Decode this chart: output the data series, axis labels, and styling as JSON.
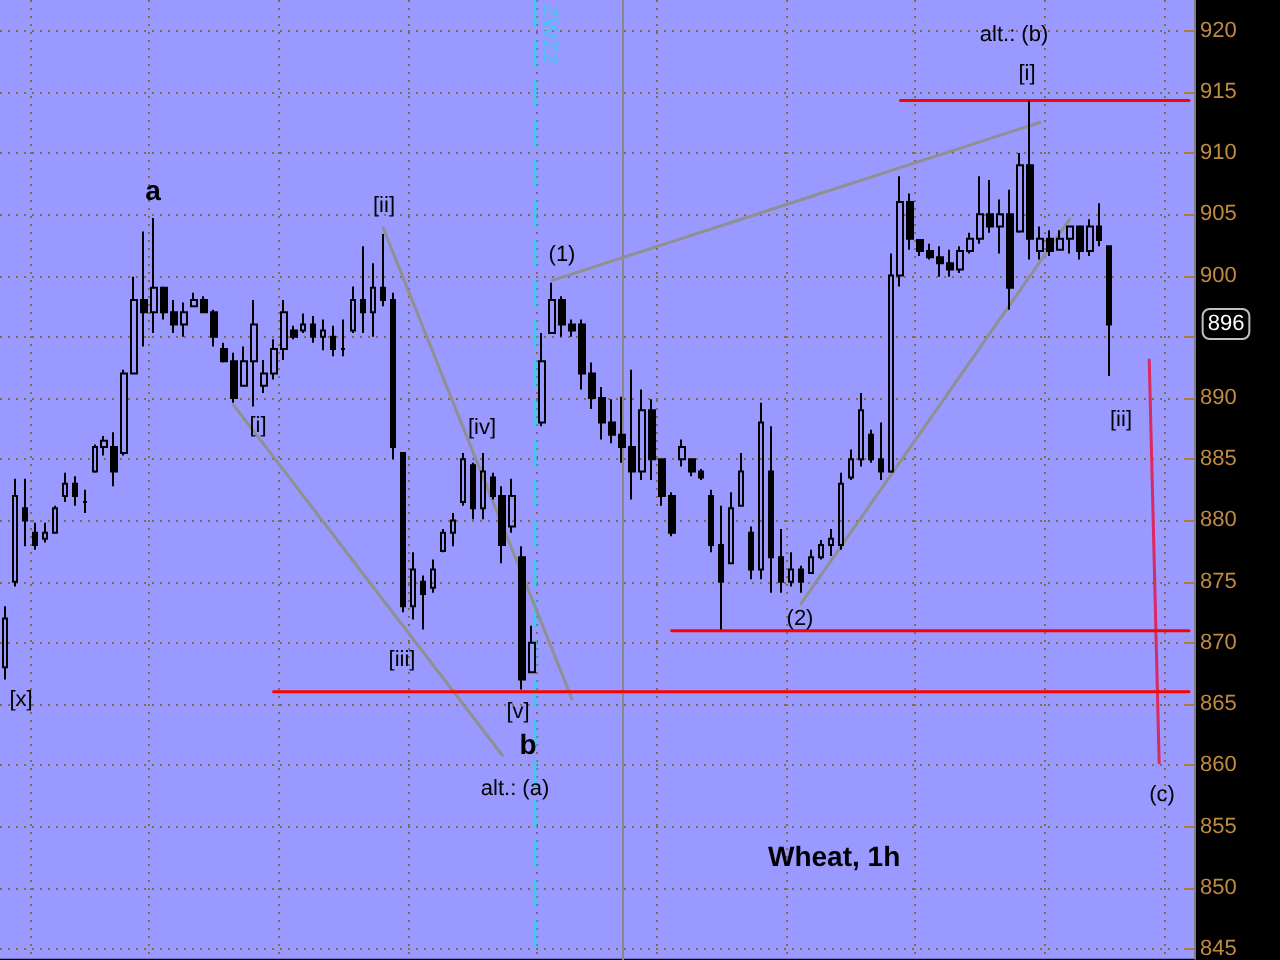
{
  "chart_data": {
    "type": "candlestick",
    "title": "Wheat, 1h",
    "color": "#000000",
    "categories": [
      null,
      null,
      null,
      null,
      null,
      null,
      null,
      null,
      null,
      null,
      null,
      null,
      null,
      null,
      null,
      null,
      null,
      null,
      null,
      null,
      null,
      null,
      null,
      null,
      null,
      null,
      null,
      null,
      null,
      null,
      null,
      null,
      null,
      null,
      null,
      null,
      null,
      null,
      null,
      null,
      null,
      null,
      null,
      null,
      null,
      null,
      null,
      null,
      null,
      null,
      null,
      null,
      null,
      null,
      null,
      null,
      null,
      null,
      null,
      null,
      null,
      null,
      null,
      null,
      null,
      null,
      null,
      null,
      null,
      null,
      null,
      null,
      null,
      null,
      null,
      null,
      null,
      null,
      null,
      null,
      null,
      null,
      null,
      null,
      null,
      null,
      null,
      null,
      null,
      null,
      null,
      null,
      null,
      null,
      null,
      null,
      null,
      null,
      null,
      null,
      null,
      null,
      null,
      null,
      null,
      null,
      null,
      null,
      null,
      null,
      null,
      null,
      null,
      null,
      null,
      null,
      null,
      null,
      null,
      null
    ],
    "ohlc": [
      [
        868,
        873,
        867,
        872
      ],
      [
        875,
        883.4,
        874.6,
        882
      ],
      [
        881,
        883.4,
        877.9,
        880
      ],
      [
        879,
        879.8,
        877.6,
        878
      ],
      [
        878.5,
        879.8,
        878.2,
        879
      ],
      [
        879,
        881.2,
        879,
        881
      ],
      [
        882,
        883.9,
        881.5,
        883
      ],
      [
        883,
        883.6,
        881.2,
        882
      ],
      [
        881.5,
        882.5,
        880.6,
        881.5
      ],
      [
        884,
        886.2,
        883.9,
        886
      ],
      [
        886,
        886.9,
        885.3,
        886.5
      ],
      [
        886,
        887.2,
        882.8,
        884
      ],
      [
        885.5,
        892.3,
        885.3,
        892
      ],
      [
        892,
        899.9,
        892,
        898
      ],
      [
        898,
        903.6,
        894.2,
        897
      ],
      [
        897,
        904.7,
        895.3,
        899
      ],
      [
        899,
        899.1,
        896.4,
        897
      ],
      [
        897,
        898,
        895.3,
        896
      ],
      [
        896,
        897.8,
        895,
        897
      ],
      [
        897.5,
        898.6,
        897.5,
        898
      ],
      [
        898,
        898.3,
        897,
        897
      ],
      [
        897,
        897.2,
        894.2,
        895
      ],
      [
        894,
        894.5,
        892.9,
        893
      ],
      [
        893,
        893.7,
        889.6,
        890
      ],
      [
        891,
        894.2,
        891,
        893
      ],
      [
        893,
        898,
        889.3,
        896
      ],
      [
        891,
        893.1,
        890.4,
        892
      ],
      [
        892,
        894.8,
        891.5,
        894
      ],
      [
        894,
        898,
        893.1,
        897
      ],
      [
        895.5,
        895.9,
        894.8,
        895
      ],
      [
        895.5,
        896.9,
        895.3,
        896
      ],
      [
        896,
        896.7,
        894.5,
        895
      ],
      [
        895,
        896.4,
        893.9,
        895.5
      ],
      [
        895,
        895.9,
        893.4,
        894
      ],
      [
        894,
        896.4,
        893.4,
        894
      ],
      [
        895.5,
        899.1,
        895.3,
        898
      ],
      [
        898,
        902.4,
        895.3,
        897
      ],
      [
        897,
        901,
        895,
        899
      ],
      [
        899,
        903.4,
        897.5,
        898
      ],
      [
        898,
        898.6,
        885,
        886
      ],
      [
        885.5,
        885.5,
        872.5,
        873
      ],
      [
        873,
        877.4,
        871.9,
        876
      ],
      [
        875,
        875.5,
        871.1,
        874
      ],
      [
        874.5,
        876.8,
        874.1,
        876
      ],
      [
        877.5,
        879.3,
        877.4,
        879
      ],
      [
        879,
        880.6,
        877.9,
        880
      ],
      [
        881.5,
        885.5,
        881.2,
        885
      ],
      [
        884.5,
        884.7,
        880.1,
        881
      ],
      [
        881,
        885.5,
        880.1,
        884
      ],
      [
        883.5,
        883.9,
        881.7,
        882
      ],
      [
        882,
        882.8,
        876.5,
        878
      ],
      [
        879.5,
        883.4,
        879,
        882
      ],
      [
        877,
        877.9,
        866.2,
        867
      ],
      [
        867.6,
        871.4,
        867.6,
        870
      ],
      [
        888,
        895.3,
        887.7,
        893
      ],
      [
        895.3,
        899.4,
        895.3,
        898
      ],
      [
        898,
        898.3,
        895,
        896
      ],
      [
        896,
        896.4,
        895,
        895.5
      ],
      [
        896,
        896.4,
        890.7,
        892
      ],
      [
        892,
        892.9,
        889.1,
        890
      ],
      [
        890,
        890.9,
        886.6,
        888
      ],
      [
        888,
        889.9,
        886.3,
        887
      ],
      [
        887,
        890.1,
        884.7,
        886
      ],
      [
        886,
        892.3,
        881.7,
        884
      ],
      [
        884,
        890.7,
        883.3,
        889
      ],
      [
        889,
        889.9,
        883.3,
        885
      ],
      [
        885,
        885,
        881.2,
        882
      ],
      [
        882,
        882.3,
        878.7,
        879
      ],
      [
        885,
        886.6,
        884.4,
        886
      ],
      [
        885,
        885,
        883.6,
        884
      ],
      [
        884,
        884.2,
        883.3,
        883.5
      ],
      [
        882,
        882.5,
        877.4,
        878
      ],
      [
        878,
        881.2,
        871.1,
        875
      ],
      [
        876.5,
        882.3,
        876.5,
        881
      ],
      [
        881.2,
        885.5,
        881.2,
        884
      ],
      [
        879,
        879.5,
        875.2,
        876
      ],
      [
        876,
        889.6,
        875.2,
        888
      ],
      [
        884,
        887.7,
        874.1,
        877
      ],
      [
        877,
        879.3,
        874.1,
        875
      ],
      [
        875,
        877.4,
        874.6,
        876
      ],
      [
        876,
        876.3,
        874.1,
        875
      ],
      [
        875.7,
        877.6,
        875.7,
        877
      ],
      [
        877,
        878.4,
        876.8,
        878
      ],
      [
        878,
        879.3,
        877.1,
        878.5
      ],
      [
        878,
        883.9,
        877.6,
        883
      ],
      [
        883.5,
        885.8,
        883.3,
        885
      ],
      [
        885,
        890.4,
        884.4,
        889
      ],
      [
        887,
        887.4,
        884.7,
        885
      ],
      [
        885,
        888,
        883.3,
        884
      ],
      [
        884,
        901.8,
        883.9,
        900
      ],
      [
        900,
        908.1,
        899.1,
        906
      ],
      [
        906,
        906.7,
        902.1,
        903
      ],
      [
        902.9,
        902.9,
        901.6,
        902
      ],
      [
        902,
        902.6,
        901.3,
        901.5
      ],
      [
        901.5,
        902.4,
        899.9,
        901
      ],
      [
        901,
        902.1,
        899.9,
        900.5
      ],
      [
        900.5,
        902.4,
        900.2,
        902
      ],
      [
        902,
        903.5,
        901.8,
        903
      ],
      [
        903,
        908.1,
        902.6,
        905
      ],
      [
        905,
        907.8,
        903.5,
        904
      ],
      [
        904,
        906.2,
        901.8,
        905
      ],
      [
        905,
        907,
        897.2,
        899
      ],
      [
        903.6,
        910,
        903.5,
        909
      ],
      [
        909,
        914.3,
        901.3,
        903
      ],
      [
        902,
        904,
        901.3,
        903
      ],
      [
        903,
        903.7,
        901.6,
        902
      ],
      [
        902.1,
        903.7,
        902.1,
        903
      ],
      [
        903,
        904,
        901.8,
        904
      ],
      [
        904,
        904,
        901.3,
        902
      ],
      [
        902,
        904.6,
        901.6,
        904
      ],
      [
        904,
        905.9,
        902.4,
        902.9
      ],
      [
        902.4,
        902.4,
        891.8,
        896
      ],
      null,
      null,
      null,
      null,
      null,
      null,
      null,
      null
    ],
    "series": [
      {
        "type": "line",
        "color": "#909090",
        "values": [
          null,
          null,
          null,
          null,
          null,
          null,
          null,
          null,
          null,
          null,
          null,
          null,
          null,
          null,
          null,
          null,
          null,
          null,
          null,
          null,
          null,
          null,
          null,
          889.4,
          null,
          null,
          null,
          null,
          null,
          null,
          null,
          null,
          null,
          null,
          null,
          null,
          null,
          null,
          null,
          null,
          null,
          null,
          null,
          null,
          null,
          null,
          null,
          null,
          null,
          null,
          860.8,
          null,
          null,
          null,
          null,
          null,
          null,
          null,
          null,
          null,
          null,
          null,
          null,
          null,
          null,
          null,
          null,
          null,
          null,
          null,
          null,
          null,
          null,
          null,
          null,
          null,
          null,
          null,
          null,
          null,
          null,
          null,
          null,
          null,
          null,
          null,
          null,
          null,
          null,
          null,
          null,
          null,
          null,
          null,
          null,
          null,
          null,
          null,
          null,
          null,
          null,
          null,
          null,
          null,
          null,
          null,
          null,
          null,
          null,
          null,
          null,
          null,
          null,
          null,
          null,
          null,
          null,
          null,
          null,
          null
        ]
      },
      {
        "type": "line",
        "color": "#909090",
        "values": [
          null,
          null,
          null,
          null,
          null,
          null,
          null,
          null,
          null,
          null,
          null,
          null,
          null,
          null,
          null,
          null,
          null,
          null,
          null,
          null,
          null,
          null,
          null,
          null,
          null,
          null,
          null,
          null,
          null,
          null,
          null,
          null,
          null,
          null,
          null,
          null,
          null,
          null,
          903.9,
          null,
          null,
          null,
          null,
          null,
          null,
          null,
          null,
          null,
          null,
          null,
          null,
          null,
          null,
          null,
          null,
          null,
          null,
          865.4,
          null,
          null,
          null,
          null,
          null,
          null,
          null,
          null,
          null,
          null,
          null,
          null,
          null,
          null,
          null,
          null,
          null,
          null,
          null,
          null,
          null,
          null,
          null,
          null,
          null,
          null,
          null,
          null,
          null,
          null,
          null,
          null,
          null,
          null,
          null,
          null,
          null,
          null,
          null,
          null,
          null,
          null,
          null,
          null,
          null,
          null,
          null,
          null,
          null,
          null,
          null,
          null,
          null,
          null,
          null,
          null,
          null,
          null,
          null,
          null,
          null,
          null
        ]
      },
      {
        "type": "line",
        "color": "#909090",
        "values": [
          null,
          null,
          null,
          null,
          null,
          null,
          null,
          null,
          null,
          null,
          null,
          null,
          null,
          null,
          null,
          null,
          null,
          null,
          null,
          null,
          null,
          null,
          null,
          null,
          null,
          null,
          null,
          null,
          null,
          null,
          null,
          null,
          null,
          null,
          null,
          null,
          null,
          null,
          null,
          null,
          null,
          null,
          null,
          null,
          null,
          null,
          null,
          null,
          null,
          null,
          null,
          null,
          null,
          null,
          null,
          899.6,
          null,
          null,
          null,
          null,
          null,
          null,
          null,
          null,
          null,
          null,
          null,
          null,
          null,
          null,
          null,
          null,
          null,
          null,
          null,
          null,
          null,
          null,
          null,
          null,
          null,
          null,
          null,
          null,
          null,
          null,
          null,
          null,
          null,
          null,
          null,
          null,
          null,
          null,
          null,
          null,
          null,
          null,
          null,
          null,
          null,
          null,
          null,
          null,
          912.5,
          null,
          null,
          null,
          null,
          null,
          null,
          null,
          null,
          null,
          null,
          null,
          null,
          null,
          null,
          null
        ]
      },
      {
        "type": "line",
        "color": "#909090",
        "values": [
          null,
          null,
          null,
          null,
          null,
          null,
          null,
          null,
          null,
          null,
          null,
          null,
          null,
          null,
          null,
          null,
          null,
          null,
          null,
          null,
          null,
          null,
          null,
          null,
          null,
          null,
          null,
          null,
          null,
          null,
          null,
          null,
          null,
          null,
          null,
          null,
          null,
          null,
          null,
          null,
          null,
          null,
          null,
          null,
          null,
          null,
          null,
          null,
          null,
          null,
          null,
          null,
          null,
          null,
          null,
          null,
          null,
          null,
          null,
          null,
          null,
          null,
          null,
          null,
          null,
          null,
          null,
          null,
          null,
          null,
          null,
          null,
          null,
          null,
          null,
          null,
          null,
          null,
          null,
          null,
          873.2,
          null,
          null,
          null,
          null,
          null,
          null,
          null,
          null,
          null,
          null,
          null,
          null,
          null,
          null,
          null,
          null,
          null,
          null,
          null,
          null,
          null,
          null,
          null,
          null,
          null,
          null,
          904.6,
          null,
          null,
          null,
          null,
          null,
          null,
          null,
          null,
          null,
          null,
          null,
          null
        ]
      },
      {
        "type": "line",
        "color": "#dc2860",
        "values": [
          null,
          null,
          null,
          null,
          null,
          null,
          null,
          null,
          null,
          null,
          null,
          null,
          null,
          null,
          null,
          null,
          null,
          null,
          null,
          null,
          null,
          null,
          null,
          null,
          null,
          null,
          null,
          null,
          null,
          null,
          null,
          null,
          null,
          null,
          null,
          null,
          null,
          null,
          null,
          null,
          null,
          null,
          null,
          null,
          null,
          null,
          null,
          null,
          null,
          null,
          null,
          null,
          null,
          null,
          null,
          null,
          null,
          null,
          null,
          null,
          null,
          null,
          null,
          null,
          null,
          null,
          null,
          null,
          null,
          null,
          null,
          null,
          null,
          null,
          null,
          null,
          null,
          null,
          null,
          null,
          null,
          null,
          null,
          null,
          null,
          null,
          null,
          null,
          null,
          null,
          null,
          null,
          null,
          null,
          null,
          null,
          null,
          null,
          null,
          null,
          null,
          null,
          null,
          null,
          null,
          null,
          null,
          null,
          null,
          null,
          null,
          null,
          null,
          null,
          null,
          893.1,
          860.2,
          null,
          null,
          null
        ]
      },
      {
        "type": "line",
        "color": "#ff0000",
        "values": [
          null,
          null,
          null,
          null,
          null,
          null,
          null,
          null,
          null,
          null,
          null,
          null,
          null,
          null,
          null,
          null,
          null,
          null,
          null,
          null,
          null,
          null,
          null,
          null,
          null,
          null,
          null,
          null,
          null,
          null,
          null,
          null,
          null,
          null,
          null,
          null,
          null,
          null,
          null,
          null,
          null,
          null,
          null,
          null,
          null,
          null,
          null,
          null,
          null,
          null,
          null,
          null,
          null,
          null,
          null,
          null,
          null,
          null,
          null,
          null,
          null,
          null,
          null,
          null,
          null,
          null,
          null,
          null,
          null,
          null,
          null,
          null,
          null,
          null,
          null,
          null,
          null,
          null,
          null,
          null,
          null,
          null,
          null,
          null,
          null,
          null,
          null,
          null,
          null,
          null,
          914.3,
          null,
          null,
          null,
          null,
          null,
          null,
          null,
          null,
          null,
          null,
          null,
          null,
          null,
          null,
          null,
          null,
          null,
          null,
          null,
          null,
          null,
          null,
          null,
          null,
          null,
          null,
          null,
          null,
          914.3
        ]
      },
      {
        "type": "line",
        "color": "#ff0000",
        "values": [
          null,
          null,
          null,
          null,
          null,
          null,
          null,
          null,
          null,
          null,
          null,
          null,
          null,
          null,
          null,
          null,
          null,
          null,
          null,
          null,
          null,
          null,
          null,
          null,
          null,
          null,
          null,
          null,
          null,
          null,
          null,
          null,
          null,
          null,
          null,
          null,
          null,
          null,
          null,
          null,
          null,
          null,
          null,
          null,
          null,
          null,
          null,
          null,
          null,
          null,
          null,
          null,
          null,
          null,
          null,
          null,
          null,
          null,
          null,
          null,
          null,
          null,
          null,
          null,
          null,
          null,
          null,
          871,
          null,
          null,
          null,
          null,
          null,
          null,
          null,
          null,
          null,
          null,
          null,
          null,
          null,
          null,
          null,
          null,
          null,
          null,
          null,
          null,
          null,
          null,
          null,
          null,
          null,
          null,
          null,
          null,
          null,
          null,
          null,
          null,
          null,
          null,
          null,
          null,
          null,
          null,
          null,
          null,
          null,
          null,
          null,
          null,
          null,
          null,
          null,
          null,
          null,
          null,
          null,
          871
        ]
      },
      {
        "type": "line",
        "color": "#ff0000",
        "values": [
          null,
          null,
          null,
          null,
          null,
          null,
          null,
          null,
          null,
          null,
          null,
          null,
          null,
          null,
          null,
          null,
          null,
          null,
          null,
          null,
          null,
          null,
          null,
          null,
          null,
          null,
          null,
          866,
          null,
          null,
          null,
          null,
          null,
          null,
          null,
          null,
          null,
          null,
          null,
          null,
          null,
          null,
          null,
          null,
          null,
          null,
          null,
          null,
          null,
          null,
          null,
          null,
          null,
          null,
          null,
          null,
          null,
          null,
          null,
          null,
          null,
          null,
          null,
          null,
          null,
          null,
          null,
          null,
          null,
          null,
          null,
          null,
          null,
          null,
          null,
          null,
          null,
          null,
          null,
          null,
          null,
          null,
          null,
          null,
          null,
          null,
          null,
          null,
          null,
          null,
          null,
          null,
          null,
          null,
          null,
          null,
          null,
          null,
          null,
          null,
          null,
          null,
          null,
          null,
          null,
          null,
          null,
          null,
          null,
          null,
          null,
          null,
          null,
          null,
          null,
          null,
          null,
          null,
          null,
          866
        ]
      }
    ],
    "ylim": [
      844.2,
      922.5
    ],
    "yticks": [
      845,
      850,
      855,
      860,
      865,
      870,
      875,
      880,
      885,
      890,
      {
        "value": 895,
        "label": null
      },
      900,
      905,
      910,
      915,
      920
    ],
    "tick_labels": "y",
    "grid": true,
    "annotations": [
      "[x]",
      "a",
      "[i]",
      "[ii]",
      "[iii]",
      "[iv]",
      "[v]",
      "b",
      "alt.: (a)",
      "ZWZ2",
      "(1)",
      "(2)",
      "alt.: (b)",
      "[i]",
      "[ii]",
      "(c)",
      "896"
    ]
  }
}
